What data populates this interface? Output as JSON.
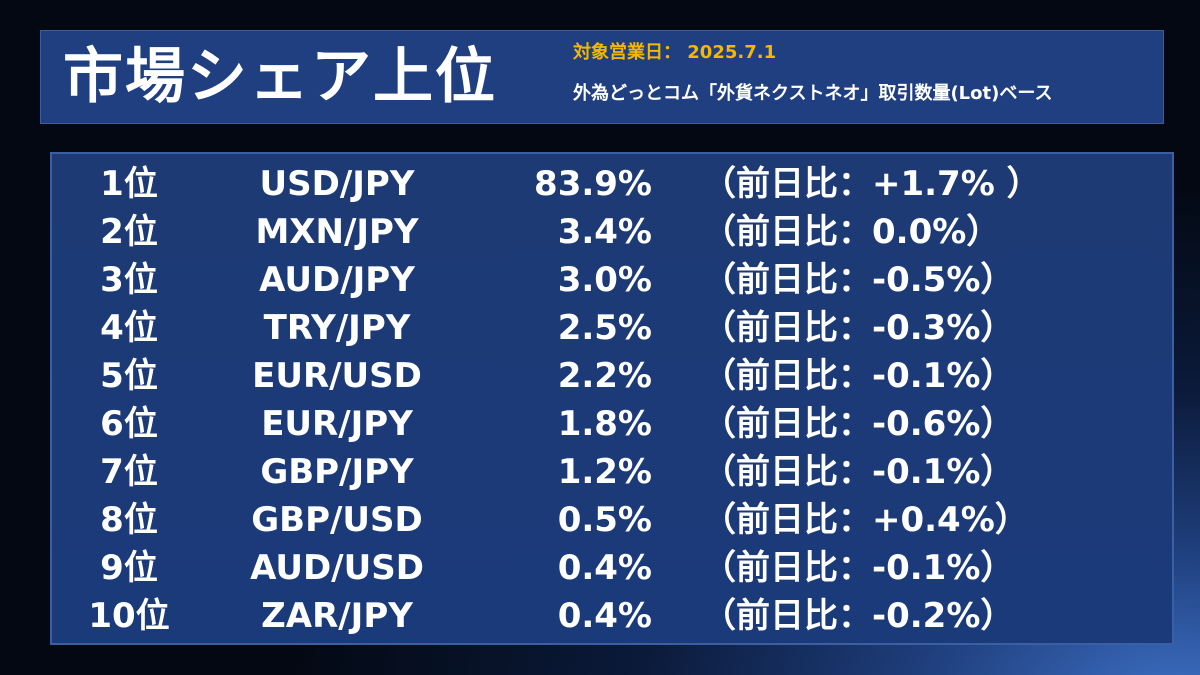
{
  "header": {
    "title": "市場シェア上位",
    "date_line": "対象営業日： 2025.7.1",
    "basis_line": "外為どっとコム「外貨ネクストネオ」取引数量(Lot)ベース"
  },
  "ranking": [
    {
      "rank": "1位",
      "pair": "USD/JPY",
      "share": "83.9%",
      "change": "（前日比：+1.7% ）"
    },
    {
      "rank": "2位",
      "pair": "MXN/JPY",
      "share": "3.4%",
      "change": "（前日比：0.0%）"
    },
    {
      "rank": "3位",
      "pair": "AUD/JPY",
      "share": "3.0%",
      "change": "（前日比：-0.5%）"
    },
    {
      "rank": "4位",
      "pair": "TRY/JPY",
      "share": "2.5%",
      "change": "（前日比：-0.3%）"
    },
    {
      "rank": "5位",
      "pair": "EUR/USD",
      "share": "2.2%",
      "change": "（前日比：-0.1%）"
    },
    {
      "rank": "6位",
      "pair": "EUR/JPY",
      "share": "1.8%",
      "change": "（前日比：-0.6%）"
    },
    {
      "rank": "7位",
      "pair": "GBP/JPY",
      "share": "1.2%",
      "change": "（前日比：-0.1%）"
    },
    {
      "rank": "8位",
      "pair": "GBP/USD",
      "share": "0.5%",
      "change": "（前日比：+0.4%）"
    },
    {
      "rank": "9位",
      "pair": "AUD/USD",
      "share": "0.4%",
      "change": "（前日比：-0.1%）"
    },
    {
      "rank": "10位",
      "pair": "ZAR/JPY",
      "share": "0.4%",
      "change": "（前日比：-0.2%）"
    }
  ],
  "colors": {
    "date_accent": "#f5b700",
    "panel_blue": "#1f3f80",
    "text": "#ffffff"
  }
}
